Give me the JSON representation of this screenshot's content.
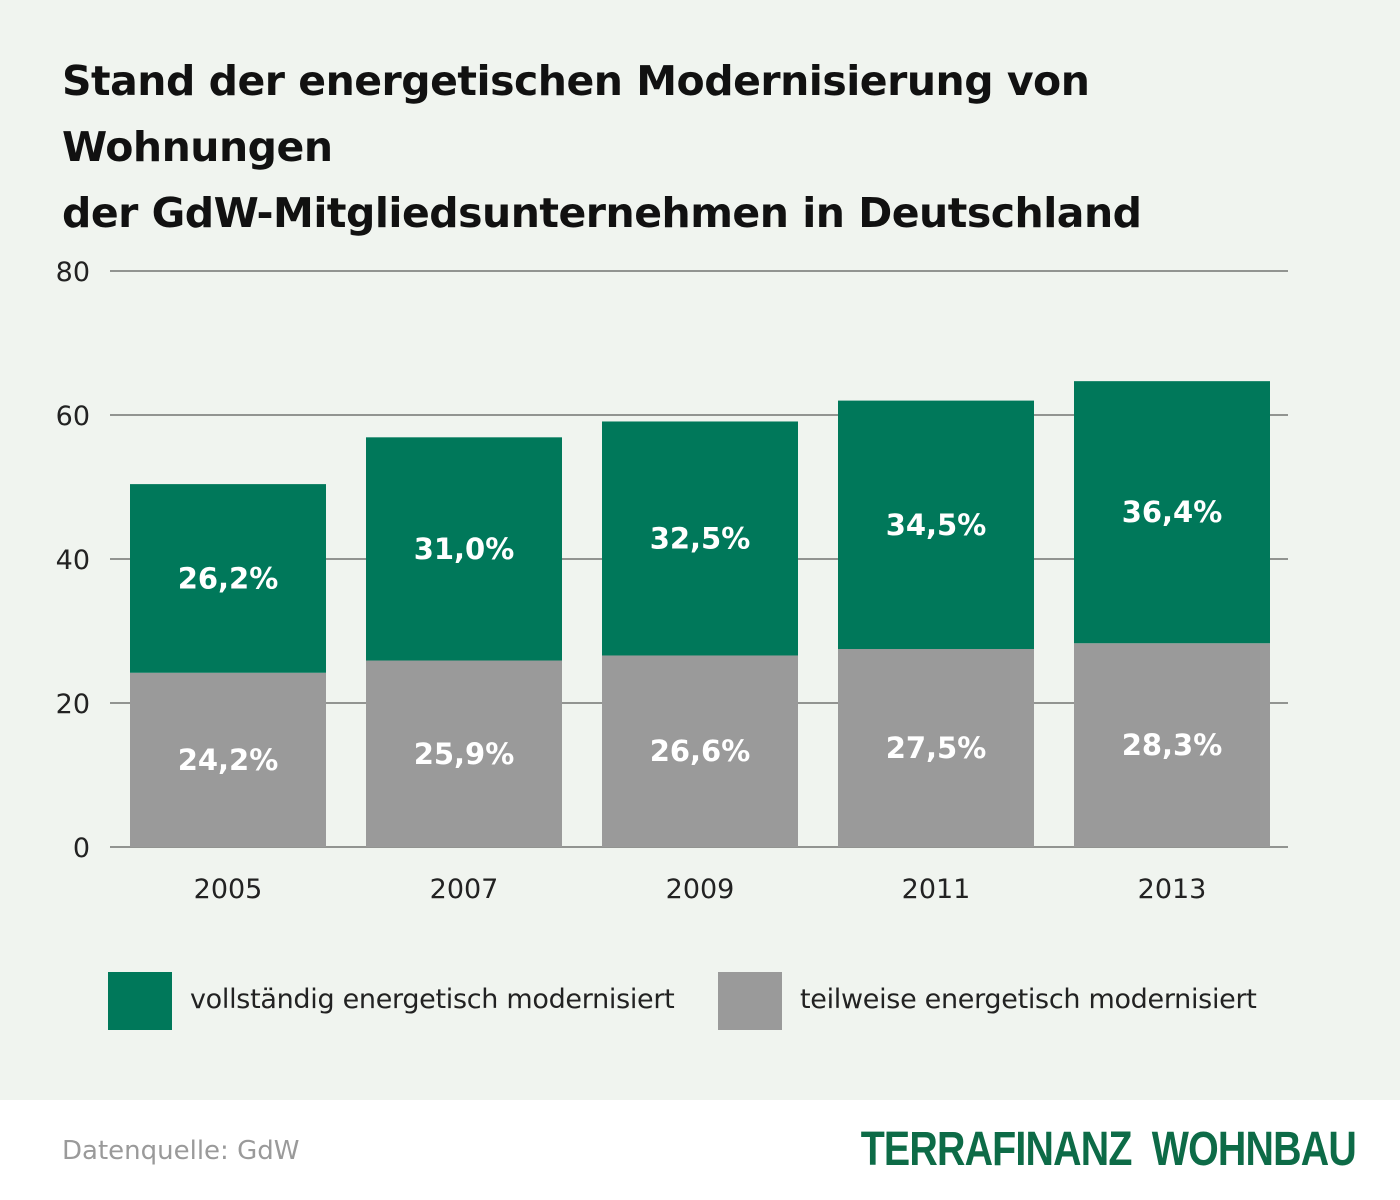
{
  "title": {
    "line1": "Stand der energetischen Modernisierung von Wohnungen",
    "line2": "der GdW-Mitgliedsunternehmen in Deutschland"
  },
  "colors": {
    "full": "#00785a",
    "partial": "#9a9a9a",
    "background": "#f0f4ef",
    "brand": "#0d6b47"
  },
  "chart_data": {
    "type": "bar",
    "stacked": true,
    "categories": [
      "2005",
      "2007",
      "2009",
      "2011",
      "2013"
    ],
    "series": [
      {
        "name": "teilweise energetisch modernisiert",
        "values": [
          24.2,
          25.9,
          26.6,
          27.5,
          28.3
        ],
        "labels": [
          "24,2%",
          "25,9%",
          "26,6%",
          "27,5%",
          "28,3%"
        ]
      },
      {
        "name": "vollständig energetisch modernisiert",
        "values": [
          26.2,
          31.0,
          32.5,
          34.5,
          36.4
        ],
        "labels": [
          "26,2%",
          "31,0%",
          "32,5%",
          "34,5%",
          "36,4%"
        ]
      }
    ],
    "yticks": [
      "0",
      "20",
      "40",
      "60",
      "80"
    ],
    "ylim": [
      0,
      80
    ],
    "grid": true,
    "legend_position": "bottom"
  },
  "legend": {
    "full_label": "vollständig energetisch modernisiert",
    "partial_label": "teilweise energetisch modernisiert"
  },
  "footer": {
    "source": "Datenquelle: GdW",
    "brand": "TERRAFINANZ  WOHNBAU"
  }
}
